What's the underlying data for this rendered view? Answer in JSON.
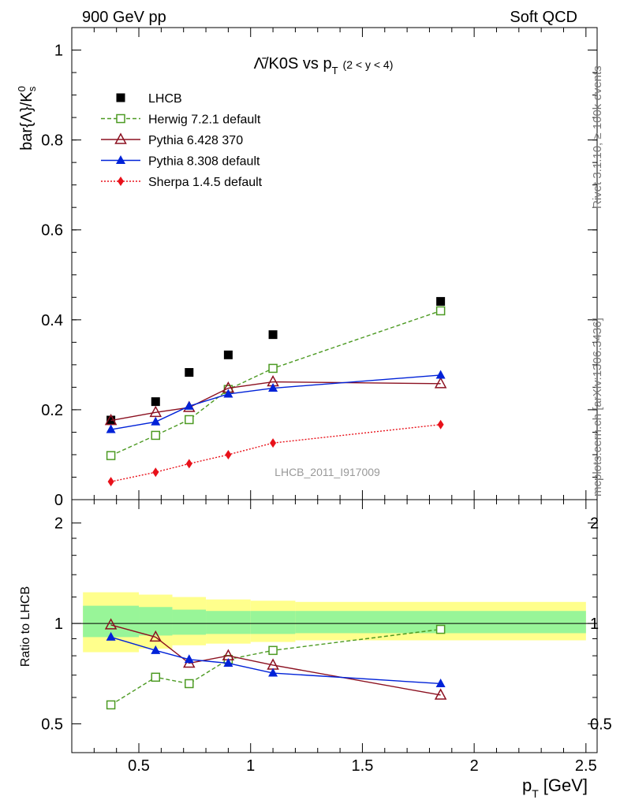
{
  "header": {
    "energy_label": "900 GeV pp",
    "process_label": "Soft QCD"
  },
  "side_labels": {
    "rivet": "Rivet 3.1.10, ≥ 100k events",
    "mcplots": "mcplots.cern.ch [arXiv:1306.3436]"
  },
  "chart_data": [
    {
      "type": "scatter",
      "panel": "main",
      "title_main": "Λ̄/K0S vs p",
      "title_sub": "T",
      "title_range": "(2 < y < 4)",
      "ylabel": "bar{Λ}/K",
      "ylabel_sup": "0",
      "ylabel_sub": "s",
      "watermark": "LHCB_2011_I917009",
      "xlim": [
        0.2,
        2.55
      ],
      "ylim": [
        0,
        1.05
      ],
      "yticks": [
        0,
        0.2,
        0.4,
        0.6,
        0.8,
        1
      ],
      "ytick_labels": [
        "0",
        "0.2",
        "0.4",
        "0.6",
        "0.8",
        "1"
      ],
      "x": [
        0.375,
        0.575,
        0.725,
        0.9,
        1.1,
        1.85
      ],
      "series": [
        {
          "name": "LHCB",
          "color": "#000000",
          "marker": "square-filled",
          "line": "none",
          "values": [
            0.177,
            0.218,
            0.283,
            0.322,
            0.367,
            0.441
          ]
        },
        {
          "name": "Herwig 7.2.1 default",
          "color": "#4c9a22",
          "marker": "square-open",
          "line": "dashed",
          "values": [
            0.098,
            0.143,
            0.178,
            0.245,
            0.292,
            0.42
          ]
        },
        {
          "name": "Pythia 6.428 370",
          "color": "#8b1020",
          "marker": "triangle-open",
          "line": "solid",
          "values": [
            0.176,
            0.194,
            0.205,
            0.248,
            0.262,
            0.258
          ]
        },
        {
          "name": "Pythia 8.308 default",
          "color": "#0022d8",
          "marker": "triangle-filled",
          "line": "solid",
          "values": [
            0.156,
            0.173,
            0.208,
            0.235,
            0.248,
            0.277
          ]
        },
        {
          "name": "Sherpa 1.4.5 default",
          "color": "#e8111a",
          "marker": "diamond-filled",
          "line": "dotted",
          "values": [
            0.04,
            0.061,
            0.08,
            0.1,
            0.126,
            0.167
          ]
        }
      ]
    },
    {
      "type": "scatter",
      "panel": "ratio",
      "ylabel": "Ratio to LHCB",
      "xlabel": "p",
      "xlabel_sub": "T",
      "xlabel_unit": "[GeV]",
      "xlim": [
        0.2,
        2.55
      ],
      "ylim": [
        0.41,
        2.35
      ],
      "scale": "log",
      "xticks": [
        0.5,
        1,
        1.5,
        2,
        2.5
      ],
      "xtick_labels": [
        "0.5",
        "1",
        "1.5",
        "2",
        "2.5"
      ],
      "yticks": [
        0.5,
        1,
        2
      ],
      "ytick_labels": [
        "0.5",
        "1",
        "2"
      ],
      "bands": {
        "x_edges": [
          0.25,
          0.5,
          0.65,
          0.8,
          1.0,
          1.2,
          2.5
        ],
        "yellow": [
          [
            0.82,
            1.24
          ],
          [
            0.84,
            1.22
          ],
          [
            0.86,
            1.2
          ],
          [
            0.87,
            1.18
          ],
          [
            0.88,
            1.17
          ],
          [
            0.89,
            1.16
          ]
        ],
        "green": [
          [
            0.91,
            1.13
          ],
          [
            0.92,
            1.12
          ],
          [
            0.925,
            1.1
          ],
          [
            0.93,
            1.09
          ],
          [
            0.93,
            1.09
          ],
          [
            0.935,
            1.09
          ]
        ]
      },
      "series": [
        {
          "name": "Herwig 7.2.1 default",
          "values": [
            0.57,
            0.69,
            0.66,
            0.78,
            0.83,
            0.96
          ]
        },
        {
          "name": "Pythia 6.428 370",
          "values": [
            0.99,
            0.91,
            0.76,
            0.8,
            0.75,
            0.61
          ]
        },
        {
          "name": "Pythia 8.308 default",
          "values": [
            0.91,
            0.83,
            0.78,
            0.76,
            0.71,
            0.66
          ]
        }
      ]
    }
  ]
}
